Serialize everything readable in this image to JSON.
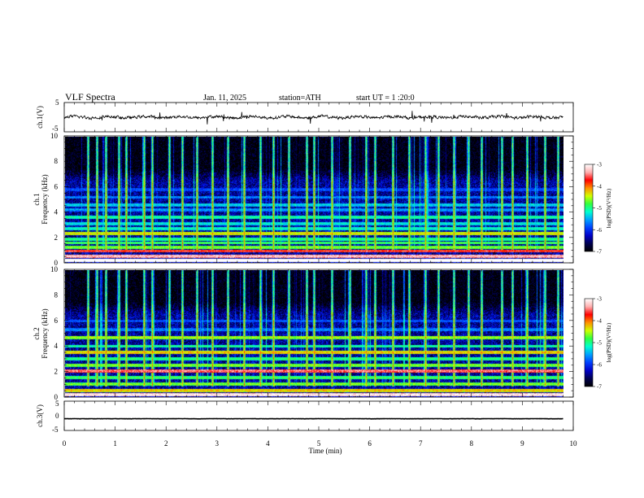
{
  "header": {
    "title": "VLF Spectra",
    "date": "Jan. 11, 2025",
    "station": "station=ATH",
    "start": "start UT =  1 :20:0"
  },
  "colors": {
    "background": "#ffffff",
    "spectrogram_scale": [
      "#000000",
      "#000050",
      "#0000c8",
      "#0040ff",
      "#00a0ff",
      "#00ffd0",
      "#30ff40",
      "#d0ff00",
      "#ff9000",
      "#ff0000",
      "#ffb0b0",
      "#ffffff"
    ]
  },
  "chart_data": [
    {
      "type": "line",
      "panel": "ch1-waveform",
      "ylabel": "ch.1(V)",
      "ylim": [
        -5,
        5
      ],
      "yticks": [
        "5",
        "-5"
      ],
      "xlim": [
        0,
        10
      ],
      "series": [
        {
          "values_summary": "noisy waveform centered near 0 V, amplitude about ±1 V with spikes"
        }
      ]
    },
    {
      "type": "heatmap",
      "panel": "ch1-spectrogram",
      "ylabel": "ch.1\nFrequency (kHz)",
      "ylim": [
        0,
        10
      ],
      "yticks": [
        "0",
        "2",
        "4",
        "6",
        "8",
        "10"
      ],
      "xlim": [
        0,
        9.8
      ],
      "colorbar_label": "log(PSD)(V²/Hz)",
      "colorbar_range": [
        -7,
        -3
      ],
      "colorbar_ticks": [
        "-3",
        "-4",
        "-5",
        "-6",
        "-7"
      ],
      "bands_khz": [
        {
          "f": 0.15,
          "level": -2.6
        },
        {
          "f": 0.5,
          "level": -3.2
        },
        {
          "f": 0.9,
          "level": -3.6
        },
        {
          "f": 1.2,
          "level": -4.6
        },
        {
          "f": 1.55,
          "level": -4.8
        },
        {
          "f": 1.85,
          "level": -4.9
        },
        {
          "f": 2.3,
          "level": -4.3
        },
        {
          "f": 2.7,
          "level": -5.1
        },
        {
          "f": 3.1,
          "level": -5.2
        },
        {
          "f": 3.6,
          "level": -5.0
        },
        {
          "f": 4.2,
          "level": -5.5
        },
        {
          "f": 4.6,
          "level": -5.3
        },
        {
          "f": 5.2,
          "level": -5.6
        },
        {
          "f": 5.8,
          "level": -5.8
        }
      ],
      "sferic_times_min": [
        0.45,
        0.62,
        0.8,
        1.05,
        1.2,
        1.55,
        1.72,
        2.05,
        2.3,
        2.6,
        2.9,
        3.2,
        3.52,
        3.85,
        4.1,
        4.4,
        4.75,
        4.9,
        5.25,
        5.6,
        5.92,
        6.1,
        6.45,
        6.78,
        7.1,
        7.35,
        7.65,
        7.95,
        8.2,
        8.6,
        8.8,
        9.1,
        9.45,
        9.7
      ]
    },
    {
      "type": "heatmap",
      "panel": "ch2-spectrogram",
      "ylabel": "ch.2\nFrequency (kHz)",
      "ylim": [
        0,
        10
      ],
      "yticks": [
        "0",
        "2",
        "4",
        "6",
        "8",
        "10"
      ],
      "xlim": [
        0,
        9.8
      ],
      "colorbar_label": "log(PSD)(V²/Hz)",
      "colorbar_range": [
        -7,
        -3
      ],
      "colorbar_ticks": [
        "-3",
        "-4",
        "-5",
        "-6",
        "-7"
      ],
      "bands_khz": [
        {
          "f": 0.15,
          "level": -3.0
        },
        {
          "f": 0.5,
          "level": -4.2
        },
        {
          "f": 1.0,
          "level": -4.6
        },
        {
          "f": 1.5,
          "level": -4.8
        },
        {
          "f": 2.05,
          "level": -3.4
        },
        {
          "f": 2.5,
          "level": -4.6
        },
        {
          "f": 3.0,
          "level": -4.9
        },
        {
          "f": 3.5,
          "level": -4.2
        },
        {
          "f": 4.0,
          "level": -5.0
        },
        {
          "f": 4.7,
          "level": -4.5
        },
        {
          "f": 5.3,
          "level": -5.6
        },
        {
          "f": 6.0,
          "level": -5.8
        }
      ],
      "sferic_times_min": [
        0.45,
        0.62,
        0.8,
        1.05,
        1.2,
        1.55,
        1.72,
        2.05,
        2.3,
        2.6,
        2.9,
        3.2,
        3.52,
        3.85,
        4.1,
        4.4,
        4.75,
        4.9,
        5.25,
        5.6,
        5.92,
        6.1,
        6.45,
        6.78,
        7.1,
        7.35,
        7.65,
        7.95,
        8.2,
        8.6,
        8.8,
        9.1,
        9.45,
        9.7
      ]
    },
    {
      "type": "line",
      "panel": "ch3-waveform",
      "ylabel": "ch.3(V)",
      "ylim": [
        -5,
        5
      ],
      "yticks": [
        "5",
        "0",
        "-5"
      ],
      "xlabel": "Time (min)",
      "xlim": [
        0,
        10
      ],
      "xticks": [
        "0",
        "1",
        "2",
        "3",
        "4",
        "5",
        "6",
        "7",
        "8",
        "9",
        "10"
      ],
      "series": [
        {
          "values_summary": "nearly constant near -1 V with small noise"
        }
      ]
    }
  ]
}
